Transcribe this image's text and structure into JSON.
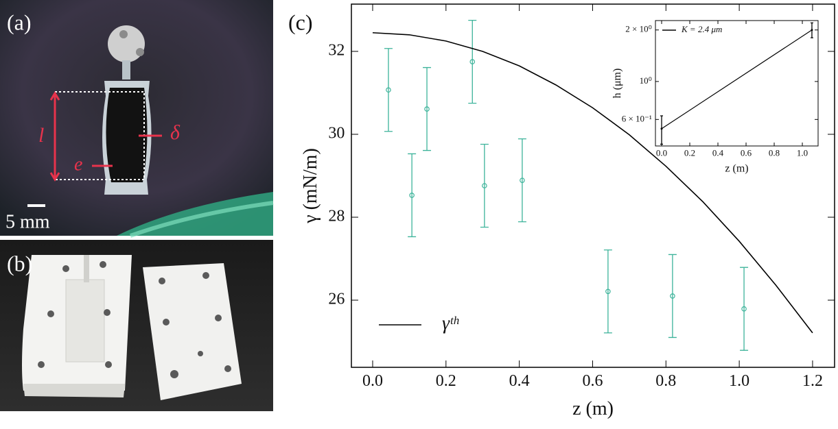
{
  "photos": {
    "a": {
      "label": "(a)",
      "annotations": [
        "l",
        "e",
        "δ"
      ],
      "scale": "5 mm"
    },
    "b": {
      "label": "(b)"
    }
  },
  "chart_data": [
    {
      "type": "line",
      "label": "(c)",
      "xlabel": "z (m)",
      "ylabel": "γ (mN/m)",
      "xlim": [
        -0.058,
        1.26
      ],
      "ylim": [
        24.38,
        33.14
      ],
      "xticks": [
        {
          "value": 0,
          "label": "0.0"
        },
        0.2,
        0.4,
        0.6,
        0.8,
        {
          "value": 1,
          "label": "1.0"
        },
        1.2
      ],
      "yticks": [
        26,
        28,
        30,
        32
      ],
      "legend_loc": "lower left",
      "series": [
        {
          "mode": "markers",
          "color": "#3cb39a",
          "x": [
            0.043,
            0.107,
            0.148,
            0.272,
            0.305,
            0.408,
            0.642,
            0.818,
            1.013
          ],
          "values": [
            31.07,
            28.53,
            30.61,
            31.75,
            28.76,
            28.89,
            26.21,
            26.1,
            25.79
          ],
          "errors": [
            1,
            1,
            1,
            1,
            1,
            1,
            1,
            1,
            1
          ]
        },
        {
          "mode": "line",
          "name": "γᵗʰ",
          "color": "#000000",
          "x": [
            0,
            0.1,
            0.2,
            0.3,
            0.4,
            0.5,
            0.6,
            0.7,
            0.8,
            0.9,
            1,
            1.1,
            1.2
          ],
          "values": [
            32.45,
            32.4,
            32.25,
            32.0,
            31.65,
            31.19,
            30.64,
            29.99,
            29.23,
            28.38,
            27.42,
            26.36,
            25.21
          ]
        }
      ]
    },
    {
      "type": "line",
      "xlabel": "z (m)",
      "ylabel": "h (μm)",
      "log_y": true,
      "xlim": [
        -0.044,
        1.112
      ],
      "ylim": [
        0.42,
        2.27
      ],
      "xticks": [
        {
          "value": 0,
          "label": "0.0"
        },
        0.2,
        0.4,
        0.6,
        0.8,
        {
          "value": 1,
          "label": "1.0"
        }
      ],
      "yticks": [
        {
          "value": 0.6,
          "label": "6 × 10⁻¹"
        },
        {
          "value": 1,
          "label": "10⁰"
        },
        {
          "value": 2,
          "label": "2 × 10⁰"
        }
      ],
      "legend_loc": "upper left",
      "series": [
        {
          "mode": "line",
          "name": "K = 2.4 μm",
          "color": "#000000",
          "x": [
            0,
            1.068
          ],
          "values": [
            0.53,
            2.0
          ],
          "errors": [
            0.1,
            0.2
          ]
        }
      ]
    }
  ]
}
